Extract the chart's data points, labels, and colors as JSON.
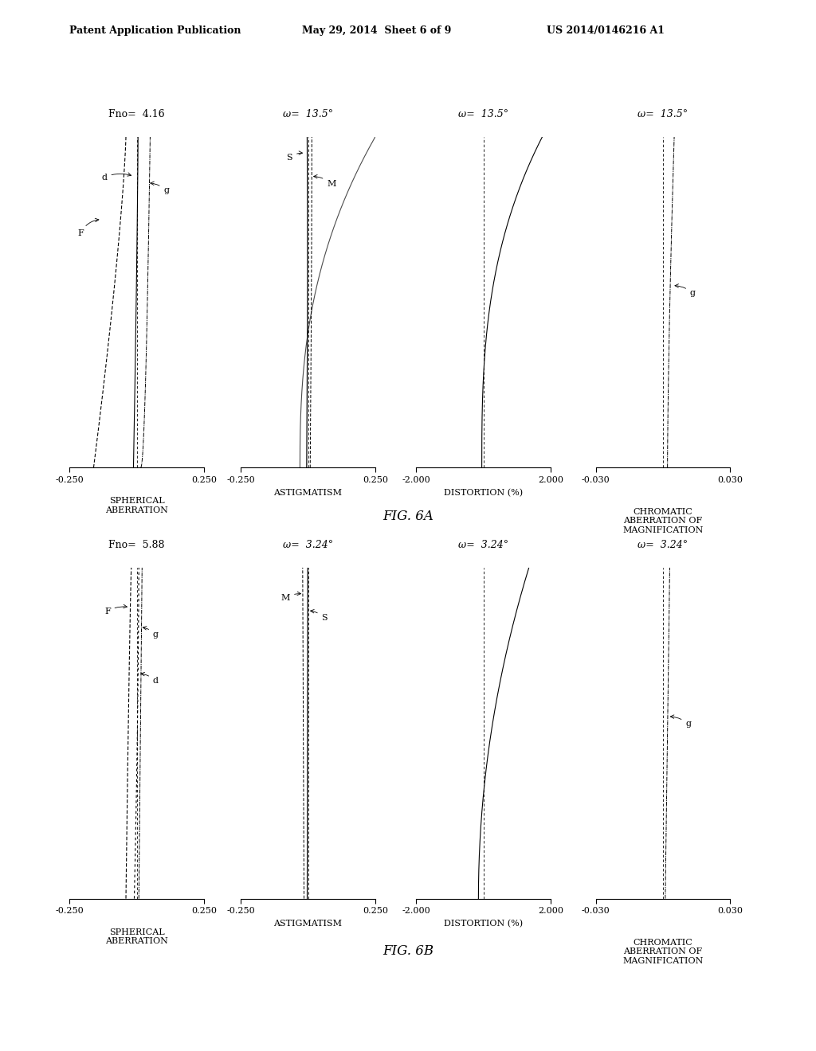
{
  "fig_title_top": "Patent Application Publication",
  "fig_title_date": "May 29, 2014  Sheet 6 of 9",
  "fig_title_patent": "US 2014/0146216 A1",
  "background_color": "#ffffff",
  "fig6a_label": "FIG. 6A",
  "fig6b_label": "FIG. 6B",
  "row1": {
    "fno": "Fno=  4.16",
    "omega1": "ω=  13.5°",
    "omega2": "ω=  13.5°",
    "omega3": "ω=  13.5°",
    "plot1_xlim": [
      -0.25,
      0.25
    ],
    "plot2_xlim": [
      -0.25,
      0.25
    ],
    "plot3_xlim": [
      -2.0,
      2.0
    ],
    "plot4_xlim": [
      -0.03,
      0.03
    ],
    "plot1_xticks": [
      -0.25,
      0.25
    ],
    "plot2_xticks": [
      -0.25,
      0.25
    ],
    "plot3_xticks": [
      -2.0,
      2.0
    ],
    "plot4_xticks": [
      -0.03,
      0.03
    ],
    "plot1_xlabel": "SPHERICAL\nABERRATION",
    "plot2_xlabel": "ASTIGMATISM",
    "plot3_xlabel": "DISTORTION (%)",
    "plot4_xlabel": "CHROMATIC\nABERRATION OF\nMAGNIFICATION"
  },
  "row2": {
    "fno": "Fno=  5.88",
    "omega1": "ω=  3.24°",
    "omega2": "ω=  3.24°",
    "omega3": "ω=  3.24°",
    "plot1_xlim": [
      -0.25,
      0.25
    ],
    "plot2_xlim": [
      -0.25,
      0.25
    ],
    "plot3_xlim": [
      -2.0,
      2.0
    ],
    "plot4_xlim": [
      -0.03,
      0.03
    ],
    "plot1_xticks": [
      -0.25,
      0.25
    ],
    "plot2_xticks": [
      -0.25,
      0.25
    ],
    "plot3_xticks": [
      -2.0,
      2.0
    ],
    "plot4_xticks": [
      -0.03,
      0.03
    ],
    "plot1_xlabel": "SPHERICAL\nABERRATION",
    "plot2_xlabel": "ASTIGMATISM",
    "plot3_xlabel": "DISTORTION (%)",
    "plot4_xlabel": "CHROMATIC\nABERRATION OF\nMAGNIFICATION"
  }
}
